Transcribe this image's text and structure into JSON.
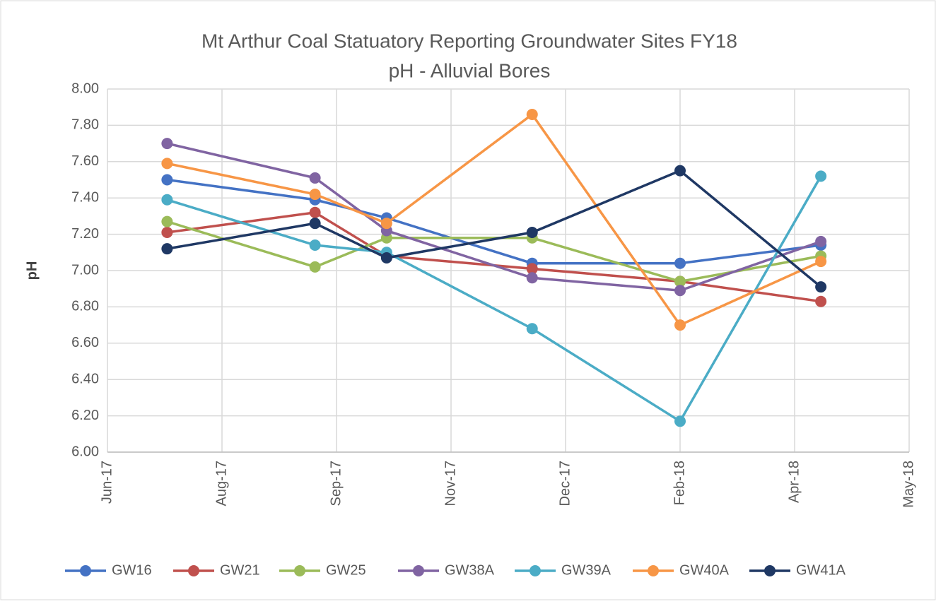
{
  "chart_data": {
    "type": "line",
    "title": "Mt Arthur Coal Statuatory Reporting Groundwater Sites FY18",
    "subtitle": "pH - Alluvial Bores",
    "y_label": "pH",
    "x": [
      "2017-07",
      "2017-09",
      "2017-10",
      "2017-12",
      "2018-02",
      "2018-04"
    ],
    "series": [
      {
        "name": "GW16",
        "color": "#4472c4",
        "values": [
          7.5,
          7.39,
          7.29,
          7.04,
          7.04,
          7.14
        ]
      },
      {
        "name": "GW21",
        "color": "#c0504d",
        "values": [
          7.21,
          7.32,
          7.08,
          7.01,
          6.94,
          6.83
        ]
      },
      {
        "name": "GW25",
        "color": "#9bbb59",
        "values": [
          7.27,
          7.02,
          7.18,
          7.18,
          6.94,
          7.08
        ]
      },
      {
        "name": "GW38A",
        "color": "#8064a2",
        "values": [
          7.7,
          7.51,
          7.22,
          6.96,
          6.89,
          7.16
        ]
      },
      {
        "name": "GW39A",
        "color": "#4bacc6",
        "values": [
          7.39,
          7.14,
          7.1,
          6.68,
          6.17,
          7.52
        ]
      },
      {
        "name": "GW40A",
        "color": "#f79646",
        "values": [
          7.59,
          7.42,
          7.26,
          7.86,
          6.7,
          7.05
        ]
      },
      {
        "name": "GW41A",
        "color": "#1f3864",
        "values": [
          7.12,
          7.26,
          7.07,
          7.21,
          7.55,
          6.91
        ]
      }
    ],
    "ylim": [
      6,
      8
    ],
    "yticks": [
      {
        "value": 6,
        "label": "6.00"
      },
      {
        "value": 6.2,
        "label": "6.20"
      },
      {
        "value": 6.4,
        "label": "6.40"
      },
      {
        "value": 6.6,
        "label": "6.60"
      },
      {
        "value": 6.8,
        "label": "6.80"
      },
      {
        "value": 7,
        "label": "7.00"
      },
      {
        "value": 7.2,
        "label": "7.20"
      },
      {
        "value": 7.4,
        "label": "7.40"
      },
      {
        "value": 7.6,
        "label": "7.60"
      },
      {
        "value": 7.8,
        "label": "7.80"
      },
      {
        "value": 8,
        "label": "8.00"
      }
    ],
    "xlim": [
      "2017-06-20",
      "2018-05-22"
    ],
    "xticks": [
      {
        "value": "2017-06-20",
        "label": "Jun-17"
      },
      {
        "value": "2017-08-07",
        "label": "Aug-17"
      },
      {
        "value": "2017-09-24",
        "label": "Sep-17"
      },
      {
        "value": "2017-11-11",
        "label": "Nov-17"
      },
      {
        "value": "2017-12-29",
        "label": "Dec-17"
      },
      {
        "value": "2018-02-15",
        "label": "Feb-18"
      },
      {
        "value": "2018-04-04",
        "label": "Apr-18"
      },
      {
        "value": "2018-05-22",
        "label": "May-18"
      }
    ],
    "grid": true,
    "legend": "bottom"
  }
}
